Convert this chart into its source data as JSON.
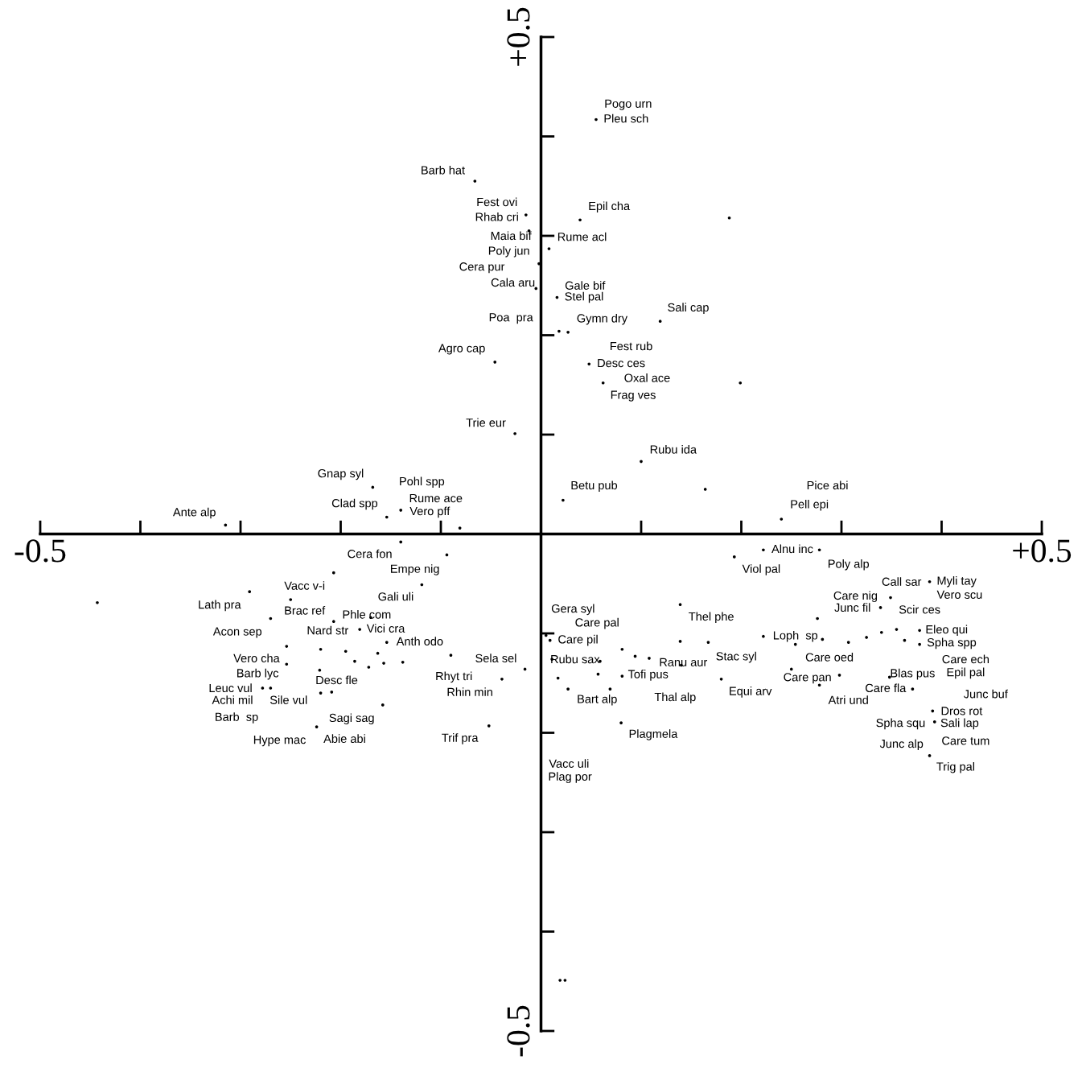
{
  "chart_data": {
    "type": "scatter",
    "color": "#000000",
    "marker": "circle",
    "xlim": [
      -0.5,
      0.5
    ],
    "ylim": [
      -0.5,
      0.5
    ],
    "xticks": [
      {
        "value": -0.5,
        "label": "-0.5"
      },
      {
        "value": 0.5,
        "label": "+0.5"
      }
    ],
    "yticks": [
      {
        "value": -0.5,
        "label": "-0.5"
      },
      {
        "value": 0.5,
        "label": "+0.5"
      }
    ],
    "x": [
      0.055,
      -0.066,
      -0.015,
      0.039,
      0.188,
      -0.012,
      0.008,
      -0.002,
      -0.005,
      0.016,
      0.119,
      0.018,
      0.027,
      -0.046,
      0.048,
      0.062,
      0.199,
      -0.026,
      0.1,
      -0.168,
      -0.14,
      0.164,
      0.022,
      -0.154,
      0.24,
      -0.315,
      -0.081,
      -0.14,
      -0.094,
      -0.443,
      -0.291,
      -0.207,
      -0.25,
      -0.119,
      -0.27,
      -0.254,
      -0.207,
      -0.17,
      -0.181,
      -0.154,
      -0.254,
      -0.22,
      -0.195,
      -0.186,
      -0.163,
      -0.138,
      -0.09,
      -0.039,
      -0.016,
      -0.221,
      -0.172,
      -0.157,
      -0.278,
      -0.27,
      -0.22,
      -0.209,
      -0.158,
      -0.224,
      -0.052,
      0.222,
      0.278,
      0.193,
      0.139,
      0.349,
      0.339,
      0.388,
      0.276,
      0.005,
      0.009,
      0.081,
      0.094,
      0.139,
      0.167,
      0.222,
      0.254,
      0.281,
      0.307,
      0.325,
      0.34,
      0.355,
      0.378,
      0.363,
      0.378,
      0.011,
      0.059,
      0.108,
      0.14,
      0.18,
      0.017,
      0.057,
      0.081,
      0.027,
      0.069,
      0.25,
      0.298,
      0.348,
      0.371,
      0.278,
      0.391,
      0.393,
      0.388,
      0.08,
      0.019,
      0.024
    ],
    "values": [
      0.417,
      0.355,
      0.321,
      0.316,
      0.318,
      0.305,
      0.287,
      0.272,
      0.247,
      0.238,
      0.214,
      0.204,
      0.203,
      0.173,
      0.171,
      0.152,
      0.152,
      0.101,
      0.073,
      0.047,
      0.024,
      0.045,
      0.034,
      0.017,
      0.015,
      0.009,
      0.006,
      -0.008,
      -0.021,
      -0.069,
      -0.058,
      -0.039,
      -0.066,
      -0.051,
      -0.085,
      -0.113,
      -0.088,
      -0.084,
      -0.096,
      -0.109,
      -0.131,
      -0.116,
      -0.118,
      -0.128,
      -0.12,
      -0.129,
      -0.122,
      -0.146,
      -0.136,
      -0.137,
      -0.134,
      -0.13,
      -0.155,
      -0.155,
      -0.16,
      -0.159,
      -0.172,
      -0.194,
      -0.193,
      -0.016,
      -0.016,
      -0.023,
      -0.071,
      -0.064,
      -0.074,
      -0.048,
      -0.085,
      -0.102,
      -0.107,
      -0.116,
      -0.123,
      -0.108,
      -0.109,
      -0.103,
      -0.111,
      -0.106,
      -0.109,
      -0.104,
      -0.099,
      -0.096,
      -0.097,
      -0.107,
      -0.111,
      -0.126,
      -0.128,
      -0.125,
      -0.132,
      -0.146,
      -0.145,
      -0.141,
      -0.143,
      -0.156,
      -0.156,
      -0.136,
      -0.142,
      -0.144,
      -0.156,
      -0.152,
      -0.178,
      -0.189,
      -0.223,
      -0.19,
      -0.449,
      -0.449
    ],
    "annotations": [
      "Pogo urn",
      "Pleu sch",
      "Barb hat",
      "Fest ovi",
      "Rhab cri",
      "Epil cha",
      "Maia bif",
      "Rume acl",
      "Poly jun",
      "Cera pur",
      "Cala aru",
      "Gale bif",
      "Stel pal",
      "Sali cap",
      "Poa  pra",
      "Gymn dry",
      "Agro cap",
      "Fest rub",
      "Desc ces",
      "Oxal ace",
      "Frag ves",
      "Trie eur",
      "Rubu ida",
      "Gnap syl",
      "Pohl spp",
      "Betu pub",
      "Pice abi",
      "Rume ace",
      "Clad spp",
      "Pell epi",
      "Ante alp",
      "Vero pff",
      "Cera fon",
      "Alnu inc",
      "Empe nig",
      "Viol pal",
      "Poly alp",
      "Call sar",
      "Myli tay",
      "Vacc v-i",
      "Vero scu",
      "Care nig",
      "Gali uli",
      "Lath pra",
      "Junc fil",
      "Gera syl",
      "Scir ces",
      "Brac ref",
      "Phle com",
      "Thel phe",
      "Care pal",
      "Vici cra",
      "Eleo qui",
      "Acon sep",
      "Nard str",
      "Loph  sp",
      "Care pil",
      "Anth odo",
      "Spha spp",
      "Vero cha",
      "Sela sel",
      "Rubu sax",
      "Care oed",
      "Stac syl",
      "Ranu aur",
      "Care ech",
      "Barb lyc",
      "Tofi pus",
      "Blas pus",
      "Epil pal",
      "Rhyt tri",
      "Care pan",
      "Desc fle",
      "Leuc vul",
      "Care fla",
      "Equi arv",
      "Rhin min",
      "Junc buf",
      "Thal alp",
      "Achi mil",
      "Sile vul",
      "Bart alp",
      "Atri und",
      "Dros rot",
      "Barb  sp",
      "Sagi sag",
      "Spha squ",
      "Sali lap",
      "Plagmela",
      "Hype mac",
      "Abie abi",
      "Trif pra",
      "Care tum",
      "Junc alp",
      "Vacc uli",
      "Trig pal",
      "Plag por"
    ]
  }
}
